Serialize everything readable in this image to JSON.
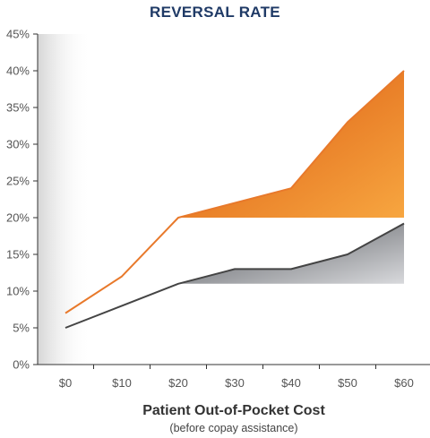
{
  "chart_data": {
    "type": "line",
    "title": "REVERSAL RATE",
    "xlabel": "Patient Out-of-Pocket Cost",
    "xsublabel": "(before copay assistance)",
    "ylabel": "",
    "categories": [
      "$0",
      "$10",
      "$20",
      "$30",
      "$40",
      "$50",
      "$60"
    ],
    "y_ticks": [
      "0%",
      "5%",
      "10%",
      "15%",
      "20%",
      "25%",
      "30%",
      "35%",
      "40%",
      "45%"
    ],
    "ylim": [
      0,
      45
    ],
    "grid": false,
    "series": [
      {
        "values": [
          7,
          12,
          20,
          22,
          24,
          33,
          40
        ],
        "color": "#e8792b"
      },
      {
        "values": [
          5,
          8,
          11,
          13,
          13,
          15,
          19.2
        ],
        "color": "#444444"
      }
    ],
    "shaded_gaps": [
      {
        "series_index": 0,
        "baseline": 20,
        "from_category": "$20",
        "to_category": "$60",
        "color": "#ee8a2e"
      },
      {
        "series_index": 1,
        "baseline": 11,
        "from_category": "$20",
        "to_category": "$60",
        "color": "#9a9ca0"
      }
    ]
  }
}
